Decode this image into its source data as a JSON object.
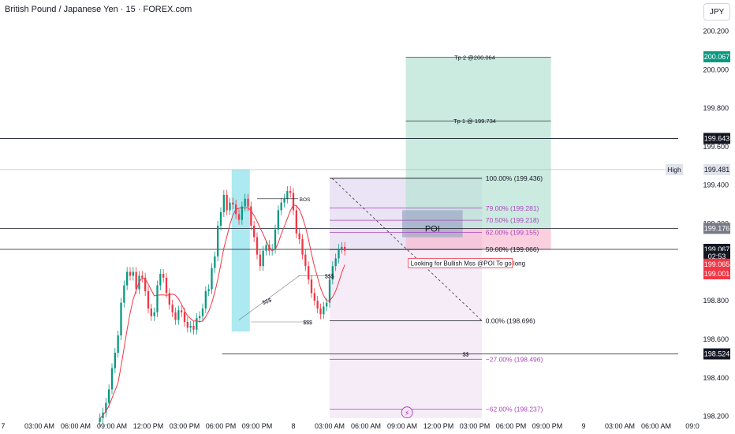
{
  "header": {
    "title": "British Pound / Japanese Yen · 15 · FOREX.com",
    "currency_button": "JPY"
  },
  "colors": {
    "bull": "#089981",
    "bear": "#f23645",
    "ma": "#f23645",
    "blue_zone": "#7fdde9",
    "target_zone": "#b9e3d5",
    "stop_zone": "#f8bbd0",
    "poi": "#9fa9c6",
    "fib_top": "#d1c4e9",
    "fib_bottom": "#f3e5f5",
    "fib_line": "#ab47bc"
  },
  "chart_data": {
    "type": "candlestick",
    "title": "British Pound / Japanese Yen · 15 · FOREX.com",
    "ylim": [
      198.19,
      200.28
    ],
    "yticks": [
      200.2,
      200.0,
      199.8,
      199.6,
      199.4,
      199.2,
      199.0,
      198.8,
      198.6,
      198.4,
      198.2
    ],
    "ytick_labels": [
      "200.200",
      "200.000",
      "199.800",
      "199.600",
      "199.400",
      "199.200",
      "199.000",
      "198.800",
      "198.600",
      "198.400",
      "198.200"
    ],
    "x_labels": [
      "7",
      "03:00 AM",
      "06:00 AM",
      "09:00 AM",
      "12:00 PM",
      "03:00 PM",
      "06:00 PM",
      "09:00 PM",
      "8",
      "03:00 AM",
      "06:00 AM",
      "09:00 AM",
      "12:00 PM",
      "03:00 PM",
      "06:00 PM",
      "09:00 PM",
      "9",
      "03:00 AM",
      "06:00 AM",
      "09:0"
    ],
    "x_label_hours": [
      0,
      3,
      6,
      9,
      12,
      15,
      18,
      21,
      24,
      27,
      30,
      33,
      36,
      39,
      42,
      45,
      48,
      51,
      54,
      57
    ],
    "candle_interval_min": 15,
    "candle_start_hour": 8.0,
    "candles_close": [
      198.19,
      198.22,
      198.27,
      198.34,
      198.45,
      198.53,
      198.62,
      198.79,
      198.88,
      198.95,
      198.93,
      198.95,
      198.86,
      198.93,
      198.92,
      198.85,
      198.76,
      198.72,
      198.74,
      198.88,
      198.94,
      198.92,
      198.84,
      198.78,
      198.74,
      198.7,
      198.75,
      198.74,
      198.69,
      198.66,
      198.67,
      198.65,
      198.71,
      198.72,
      198.76,
      198.85,
      198.86,
      198.97,
      199.03,
      199.19,
      199.26,
      199.35,
      199.27,
      199.31,
      199.3,
      199.25,
      199.22,
      199.29,
      199.33,
      199.29,
      199.19,
      199.13,
      199.04,
      198.98,
      199.06,
      199.09,
      199.06,
      199.07,
      199.17,
      199.27,
      199.31,
      199.33,
      199.37,
      199.36,
      199.27,
      199.15,
      199.12,
      199.04,
      198.98,
      198.91,
      198.84,
      198.8,
      198.76,
      198.73,
      198.77,
      198.79,
      198.91,
      198.98,
      199.02,
      199.07,
      199.08,
      199.06
    ],
    "ma_label": "MA",
    "hlines": [
      {
        "price": 199.643,
        "label": "199.643"
      },
      {
        "price": 199.481,
        "label": "High"
      },
      {
        "price": 199.176,
        "label": "199.176"
      },
      {
        "price": 199.067,
        "label": "199.067"
      },
      {
        "price": 198.524,
        "label": "198.524"
      }
    ],
    "price_badges": [
      {
        "text": "200.067",
        "price": 200.067,
        "color": "#089981"
      },
      {
        "text": "199.643",
        "price": 199.643,
        "color": "#131722"
      },
      {
        "text": "199.481",
        "price": 199.481,
        "color": "#e0e3eb"
      },
      {
        "text": "199.176",
        "price": 199.176,
        "color": "#787b86"
      },
      {
        "text": "199.067",
        "price": 199.067,
        "color": "#131722"
      },
      {
        "text": "02:53",
        "price": 199.03,
        "color": "#131722"
      },
      {
        "text": "199.065",
        "price": 198.99,
        "color": "#f23645"
      },
      {
        "text": "199.001",
        "price": 198.94,
        "color": "#f23645"
      },
      {
        "text": "198.524",
        "price": 198.524,
        "color": "#131722"
      }
    ],
    "fib_levels": [
      {
        "pct": "100.00%",
        "price": 199.436,
        "label": "100.00% (199.436)"
      },
      {
        "pct": "79.00%",
        "price": 199.281,
        "label": "79.00% (199.281)"
      },
      {
        "pct": "70.50%",
        "price": 199.218,
        "label": "70.50% (199.218)"
      },
      {
        "pct": "62.00%",
        "price": 199.155,
        "label": "62.00% (199.155)"
      },
      {
        "pct": "50.00%",
        "price": 199.066,
        "label": "50.00% (199.066)"
      },
      {
        "pct": "0.00%",
        "price": 198.696,
        "label": "0.00% (198.696)"
      },
      {
        "pct": "-27.00%",
        "price": 198.496,
        "label": "−27.00% (198.496)"
      },
      {
        "pct": "-62.00%",
        "price": 198.237,
        "label": "−62.00% (198.237)"
      }
    ],
    "annotations": [
      {
        "text": "Tp 2 @200.064",
        "price": 200.064
      },
      {
        "text": "Tp 1 @ 199.734",
        "price": 199.734
      },
      {
        "text": "POI",
        "price": 199.176
      },
      {
        "text": "Looking for Bullish Mss @POI To go long",
        "price": 199.0
      },
      {
        "text": "BOS",
        "price": 199.33
      },
      {
        "text": "$$$",
        "price": 198.93
      },
      {
        "text": "$$$",
        "price": 198.69
      },
      {
        "text": "$$$",
        "price": 198.81
      },
      {
        "text": "$$",
        "price": 198.524
      }
    ]
  }
}
